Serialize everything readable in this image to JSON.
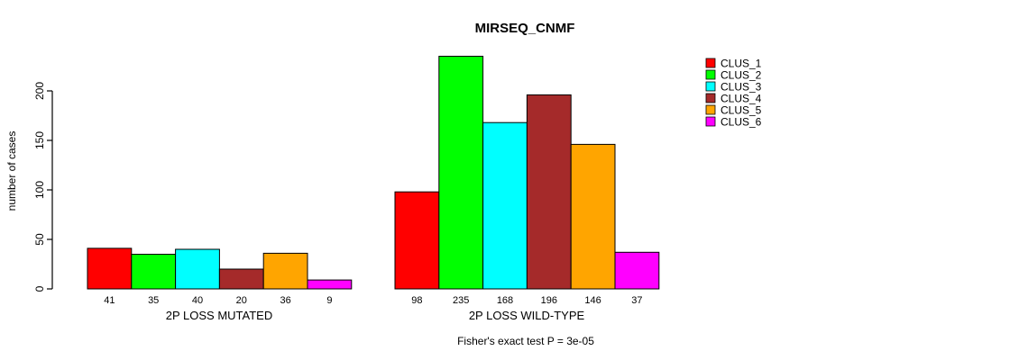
{
  "chart_data": {
    "type": "bar",
    "title": "MIRSEQ_CNMF",
    "ylabel": "number of cases",
    "xlabel": "",
    "annotation": "Fisher's exact test P = 3e-05",
    "yticks": [
      0,
      50,
      100,
      150,
      200
    ],
    "ylim": [
      0,
      240
    ],
    "grid": false,
    "legend_position": "right",
    "bar_value_labels_shown": true,
    "series_labels": [
      "CLUS_1",
      "CLUS_2",
      "CLUS_3",
      "CLUS_4",
      "CLUS_5",
      "CLUS_6"
    ],
    "colors": [
      "#FF0000",
      "#00FF00",
      "#00FFFF",
      "#A52A2A",
      "#FFA500",
      "#FF00FF"
    ],
    "groups": [
      {
        "label": "2P LOSS MUTATED",
        "values": [
          41,
          35,
          40,
          20,
          36,
          9
        ]
      },
      {
        "label": "2P LOSS WILD-TYPE",
        "values": [
          98,
          235,
          168,
          196,
          146,
          37
        ]
      }
    ]
  }
}
